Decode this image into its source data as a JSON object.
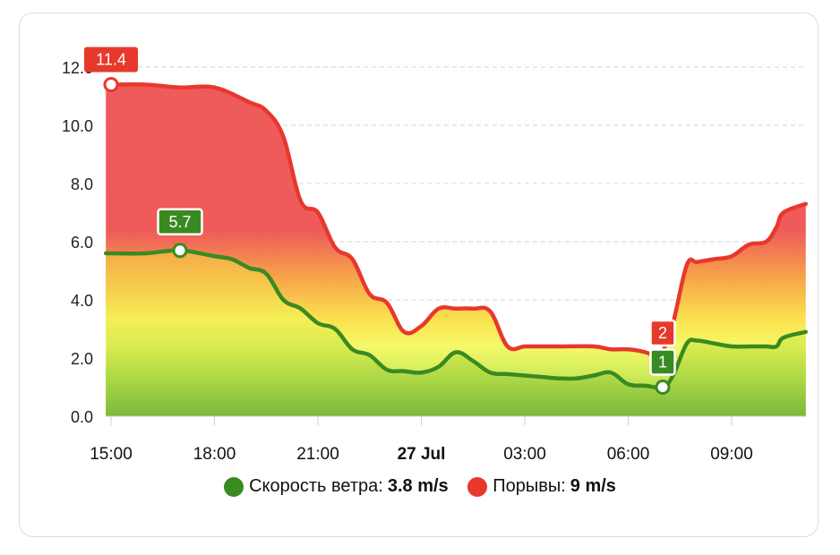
{
  "chart_data": {
    "type": "area",
    "x_ticks": [
      {
        "t": 0,
        "label": "15:00",
        "bold": false
      },
      {
        "t": 3,
        "label": "18:00",
        "bold": false
      },
      {
        "t": 6,
        "label": "21:00",
        "bold": false
      },
      {
        "t": 9,
        "label": "27 Jul",
        "bold": true
      },
      {
        "t": 12,
        "label": "03:00",
        "bold": false
      },
      {
        "t": 15,
        "label": "06:00",
        "bold": false
      },
      {
        "t": 18,
        "label": "09:00",
        "bold": false
      }
    ],
    "y_ticks": [
      "0.0",
      "2.0",
      "4.0",
      "6.0",
      "8.0",
      "10.0",
      "12.0"
    ],
    "ylim": [
      0,
      12
    ],
    "grid": true,
    "legend_position": "bottom",
    "series": [
      {
        "name": "Порывы",
        "color": "#e8382c",
        "fill_color": "#ee5b5b",
        "x": [
          -0.15,
          0,
          1,
          2,
          3,
          4,
          4.5,
          5,
          5.5,
          6,
          6.5,
          7,
          7.5,
          8,
          8.5,
          9,
          9.5,
          10,
          10.5,
          11,
          11.5,
          12,
          12.5,
          13,
          14,
          14.5,
          15,
          15.5,
          15.9,
          16,
          16.3,
          16.7,
          17,
          17.5,
          18,
          18.5,
          19,
          19.3,
          19.5,
          20.15
        ],
        "y": [
          11.4,
          11.4,
          11.4,
          11.3,
          11.3,
          10.8,
          10.5,
          9.6,
          7.4,
          7.0,
          5.8,
          5.4,
          4.2,
          3.9,
          2.9,
          3.1,
          3.7,
          3.7,
          3.7,
          3.6,
          2.4,
          2.4,
          2.4,
          2.4,
          2.4,
          2.3,
          2.3,
          2.2,
          2.0,
          2.2,
          3.2,
          5.2,
          5.3,
          5.4,
          5.5,
          5.9,
          6.0,
          6.5,
          7.0,
          7.3
        ]
      },
      {
        "name": "Скорость ветра",
        "color": "#3a8a22",
        "fill_color": "#7ac13c",
        "x": [
          -0.15,
          0,
          1,
          2,
          3,
          3.5,
          4,
          4.5,
          5,
          5.5,
          6,
          6.5,
          7,
          7.5,
          8,
          8.5,
          9,
          9.5,
          10,
          10.5,
          11,
          11.5,
          12,
          12.5,
          13,
          13.5,
          14,
          14.5,
          15,
          15.5,
          16,
          16.3,
          16.7,
          17,
          17.5,
          18,
          18.5,
          19,
          19.3,
          19.5,
          20.15
        ],
        "y": [
          5.6,
          5.6,
          5.6,
          5.7,
          5.5,
          5.4,
          5.1,
          4.9,
          4.0,
          3.7,
          3.2,
          3.0,
          2.3,
          2.1,
          1.6,
          1.55,
          1.5,
          1.7,
          2.2,
          1.9,
          1.5,
          1.45,
          1.4,
          1.35,
          1.3,
          1.3,
          1.4,
          1.5,
          1.1,
          1.05,
          1.0,
          1.4,
          2.5,
          2.6,
          2.5,
          2.4,
          2.4,
          2.4,
          2.4,
          2.7,
          2.9
        ]
      }
    ],
    "annotations": [
      {
        "series": "Порывы",
        "x": 0,
        "y": 11.4,
        "label": "11.4",
        "style": "flag-right"
      },
      {
        "series": "Скорость ветра",
        "x": 2,
        "y": 5.7,
        "label": "5.7",
        "style": "box"
      },
      {
        "series": "Порывы",
        "x": 16,
        "y": 2.0,
        "label": "2",
        "style": "box"
      },
      {
        "series": "Скорость ветра",
        "x": 16,
        "y": 1.0,
        "label": "1",
        "style": "box"
      }
    ]
  },
  "legend": {
    "items": [
      {
        "name": "Скорость ветра",
        "value": "3.8 m/s",
        "color": "#3a8a22"
      },
      {
        "name": "Порывы",
        "value": "9 m/s",
        "color": "#e8382c"
      }
    ]
  }
}
